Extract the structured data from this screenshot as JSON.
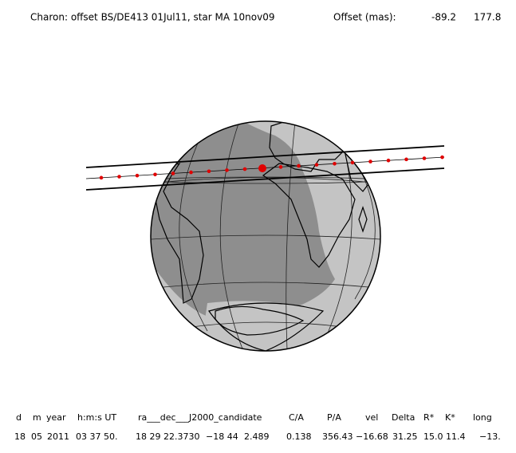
{
  "header": {
    "title": "Charon: offset BS/DE413 01Jul11, star MA 10nov09",
    "offset_label": "Offset (mas):",
    "offset_x": "-89.2",
    "offset_y": "177.8"
  },
  "table": {
    "headers": [
      "d",
      "m",
      "year",
      "h:m:s UT",
      "ra___dec___J2000_candidate",
      "C/A",
      "P/A",
      "vel",
      "Delta",
      "R*",
      "K*",
      "long"
    ],
    "rows": [
      [
        "18",
        "05",
        "2011",
        "03 37 50.",
        "18 29 22.3730",
        "−18 44",
        "2.489",
        "0.138",
        "356.43",
        "−16.68",
        "31.25",
        "15.0",
        "11.4",
        "−13."
      ]
    ]
  }
}
